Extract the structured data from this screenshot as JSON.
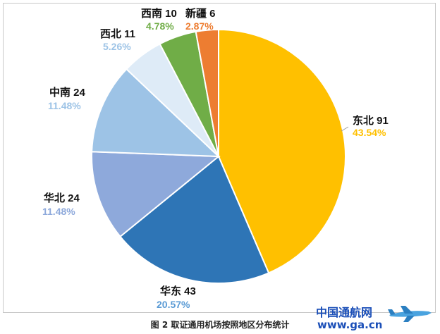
{
  "chart_data": {
    "type": "pie",
    "title": "",
    "slices": [
      {
        "label": "东北",
        "count": 91,
        "percent": "43.54%",
        "color": "#FFC000"
      },
      {
        "label": "华东",
        "count": 43,
        "percent": "20.57%",
        "color": "#2E75B6"
      },
      {
        "label": "华北",
        "count": 24,
        "percent": "11.48%",
        "color": "#8EA9DB"
      },
      {
        "label": "中南",
        "count": 24,
        "percent": "11.48%",
        "color": "#9DC3E6"
      },
      {
        "label": "西北",
        "count": 11,
        "percent": "5.26%",
        "color": "#DEEBF7"
      },
      {
        "label": "西南",
        "count": 10,
        "percent": "4.78%",
        "color": "#70AD47"
      },
      {
        "label": "新疆",
        "count": 6,
        "percent": "2.87%",
        "color": "#ED7D31"
      }
    ],
    "legend": "none",
    "label_placement": "outside"
  },
  "caption": "图 2  取证通用机场按照地区分布统计",
  "watermark": {
    "title": "中国通航网",
    "url": "www.ga.cn"
  }
}
